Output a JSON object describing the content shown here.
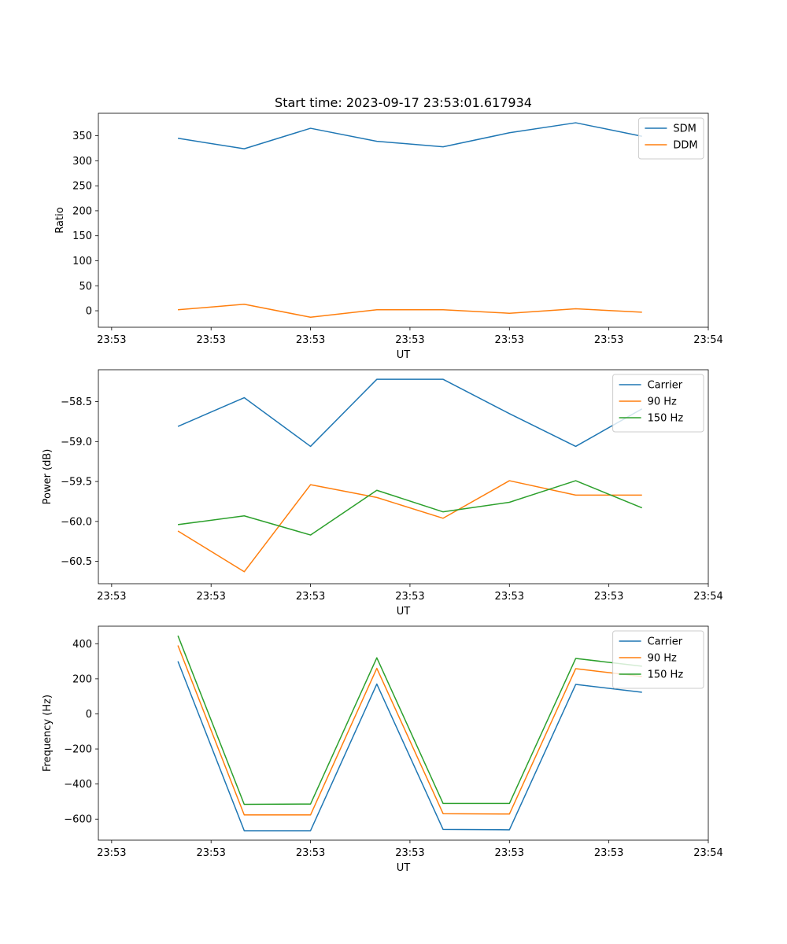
{
  "figure": {
    "title": "Start time: 2023-09-17 23:53:01.617934"
  },
  "colors": {
    "blue": "#1f77b4",
    "orange": "#ff7f0e",
    "green": "#2ca02c"
  },
  "chart_data": [
    {
      "type": "line",
      "title": "Start time: 2023-09-17 23:53:01.617934",
      "xlabel": "UT",
      "ylabel": "Ratio",
      "x": [
        1,
        2,
        3,
        4,
        5,
        6,
        7,
        8
      ],
      "x_ticks": [
        0,
        1.5,
        3,
        4.5,
        6,
        7.5,
        9
      ],
      "x_tick_labels": [
        "23:53",
        "23:53",
        "23:53",
        "23:53",
        "23:53",
        "23:53",
        "23:54"
      ],
      "xlim": [
        -0.2,
        9.0
      ],
      "ylim": [
        -33,
        395
      ],
      "y_ticks": [
        0,
        50,
        100,
        150,
        200,
        250,
        300,
        350
      ],
      "y_tick_labels": [
        "0",
        "50",
        "100",
        "150",
        "200",
        "250",
        "300",
        "350"
      ],
      "legend": "top-right",
      "grid": false,
      "series": [
        {
          "name": "SDM",
          "color": "#1f77b4",
          "values": [
            345,
            324,
            365,
            339,
            328,
            356,
            376,
            349
          ]
        },
        {
          "name": "DDM",
          "color": "#ff7f0e",
          "values": [
            2,
            13,
            -13,
            2,
            2,
            -5,
            4,
            -3
          ]
        }
      ]
    },
    {
      "type": "line",
      "xlabel": "UT",
      "ylabel": "Power (dB)",
      "x": [
        1,
        2,
        3,
        4,
        5,
        6,
        7,
        8
      ],
      "x_ticks": [
        0,
        1.5,
        3,
        4.5,
        6,
        7.5,
        9
      ],
      "x_tick_labels": [
        "23:53",
        "23:53",
        "23:53",
        "23:53",
        "23:53",
        "23:53",
        "23:54"
      ],
      "xlim": [
        -0.2,
        9.0
      ],
      "ylim": [
        -60.78,
        -58.1
      ],
      "y_ticks": [
        -60.5,
        -60.0,
        -59.5,
        -59.0,
        -58.5
      ],
      "y_tick_labels": [
        "−60.5",
        "−60.0",
        "−59.5",
        "−59.0",
        "−58.5"
      ],
      "legend": "top-right",
      "grid": false,
      "series": [
        {
          "name": "Carrier",
          "color": "#1f77b4",
          "values": [
            -58.81,
            -58.45,
            -59.06,
            -58.22,
            -58.22,
            -58.65,
            -59.06,
            -58.59
          ]
        },
        {
          "name": "90 Hz",
          "color": "#ff7f0e",
          "values": [
            -60.12,
            -60.63,
            -59.54,
            -59.7,
            -59.96,
            -59.49,
            -59.67,
            -59.67
          ]
        },
        {
          "name": "150 Hz",
          "color": "#2ca02c",
          "values": [
            -60.04,
            -59.93,
            -60.17,
            -59.61,
            -59.88,
            -59.76,
            -59.49,
            -59.83
          ]
        }
      ]
    },
    {
      "type": "line",
      "xlabel": "UT",
      "ylabel": "Frequency (Hz)",
      "x": [
        1,
        2,
        3,
        4,
        5,
        6,
        7,
        8
      ],
      "x_ticks": [
        0,
        1.5,
        3,
        4.5,
        6,
        7.5,
        9
      ],
      "x_tick_labels": [
        "23:53",
        "23:53",
        "23:53",
        "23:53",
        "23:53",
        "23:53",
        "23:54"
      ],
      "xlim": [
        -0.2,
        9.0
      ],
      "ylim": [
        -720,
        500
      ],
      "y_ticks": [
        -600,
        -400,
        -200,
        0,
        200,
        400
      ],
      "y_tick_labels": [
        "−600",
        "−400",
        "−200",
        "0",
        "200",
        "400"
      ],
      "legend": "top-right",
      "grid": false,
      "series": [
        {
          "name": "Carrier",
          "color": "#1f77b4",
          "values": [
            300,
            -666,
            -666,
            170,
            -659,
            -661,
            168,
            123
          ]
        },
        {
          "name": "90 Hz",
          "color": "#ff7f0e",
          "values": [
            390,
            -576,
            -576,
            260,
            -569,
            -571,
            258,
            213
          ]
        },
        {
          "name": "150 Hz",
          "color": "#2ca02c",
          "values": [
            446,
            -516,
            -514,
            320,
            -511,
            -511,
            316,
            272
          ]
        }
      ]
    }
  ]
}
